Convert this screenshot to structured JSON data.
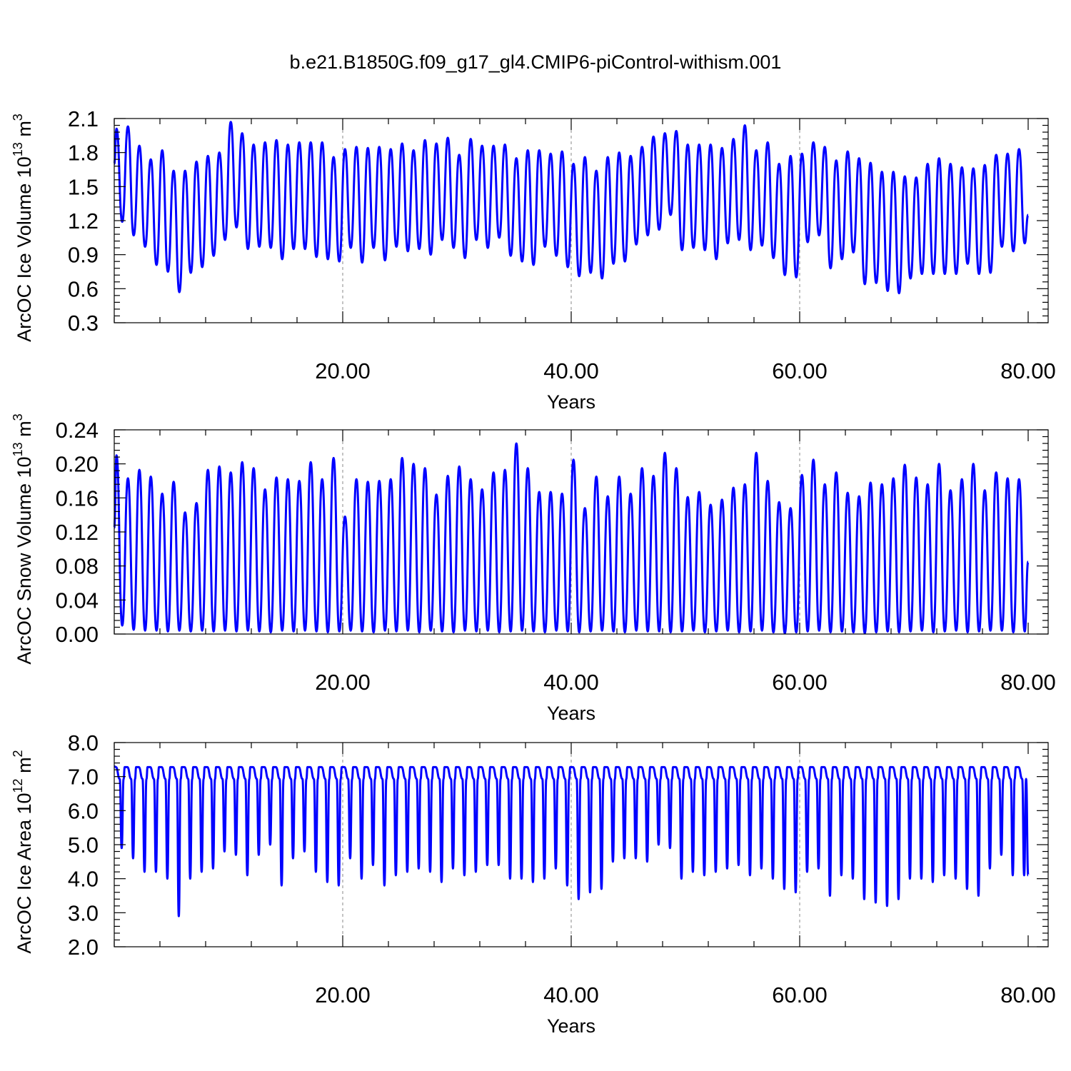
{
  "title": "b.e21.B1850G.f09_g17_gl4.CMIP6-piControl-withism.001",
  "colors": {
    "series": "#0000ff",
    "axes": "#000000",
    "grid": "#888888"
  },
  "chart_data": [
    {
      "type": "line",
      "ylabel_main": "ArcOC Ice Volume 10",
      "ylabel_exp": "13",
      "ylabel_unit": "m",
      "ylabel_unit_exp": "3",
      "xlabel": "Years",
      "xlim": [
        0,
        80
      ],
      "ylim": [
        0.3,
        2.1
      ],
      "yticks": [
        0.3,
        0.6,
        0.9,
        1.2,
        1.5,
        1.8,
        2.1
      ],
      "ytick_labels": [
        "0.3",
        "0.6",
        "0.9",
        "1.2",
        "1.5",
        "1.8",
        "2.1"
      ],
      "xticks": [
        20,
        40,
        60,
        80
      ],
      "xtick_labels": [
        "20.00",
        "40.00",
        "60.00",
        "80.00"
      ],
      "grid": "vertical dashed at major x ticks",
      "series": [
        {
          "start": 1.7,
          "end": 1.25,
          "peaks": [
            2.01,
            2.03,
            1.86,
            1.74,
            1.82,
            1.64,
            1.64,
            1.72,
            1.77,
            1.8,
            2.07,
            1.97,
            1.87,
            1.89,
            1.91,
            1.87,
            1.89,
            1.89,
            1.89,
            1.76,
            1.83,
            1.85,
            1.84,
            1.85,
            1.83,
            1.88,
            1.82,
            1.91,
            1.88,
            1.93,
            1.78,
            1.92,
            1.86,
            1.86,
            1.87,
            1.75,
            1.82,
            1.82,
            1.79,
            1.81,
            1.7,
            1.76,
            1.64,
            1.76,
            1.8,
            1.77,
            1.85,
            1.94,
            1.97,
            1.99,
            1.87,
            1.87,
            1.87,
            1.84,
            1.92,
            2.04,
            1.82,
            1.89,
            1.7,
            1.77,
            1.79,
            1.89,
            1.85,
            1.73,
            1.81,
            1.75,
            1.71,
            1.63,
            1.63,
            1.59,
            1.58,
            1.7,
            1.75,
            1.7,
            1.67,
            1.66,
            1.69,
            1.78,
            1.79,
            1.83
          ],
          "troughs": [
            1.19,
            1.07,
            0.97,
            0.81,
            0.75,
            0.57,
            0.74,
            0.79,
            0.89,
            1.03,
            1.14,
            0.95,
            0.97,
            0.96,
            0.86,
            0.95,
            0.95,
            0.88,
            0.86,
            0.84,
            0.96,
            0.83,
            0.96,
            0.85,
            0.97,
            0.93,
            0.95,
            0.9,
            1.03,
            0.96,
            0.87,
            1.03,
            0.96,
            1.05,
            0.89,
            0.84,
            0.81,
            0.97,
            0.89,
            0.79,
            0.71,
            0.74,
            0.69,
            0.82,
            0.84,
            0.99,
            1.07,
            1.12,
            1.25,
            0.94,
            0.96,
            0.94,
            0.86,
            1.0,
            1.03,
            0.94,
            0.98,
            0.87,
            0.72,
            0.7,
            1.01,
            1.07,
            0.78,
            0.86,
            0.92,
            0.64,
            0.65,
            0.58,
            0.56,
            0.69,
            0.73,
            0.73,
            0.73,
            0.73,
            0.82,
            0.73,
            0.74,
            0.97,
            0.93,
            1.0
          ]
        }
      ]
    },
    {
      "type": "line",
      "ylabel_main": "ArcOC Snow Volume 10",
      "ylabel_exp": "13",
      "ylabel_unit": "m",
      "ylabel_unit_exp": "3",
      "xlabel": "Years",
      "xlim": [
        0,
        80
      ],
      "ylim": [
        0.0,
        0.24
      ],
      "yticks": [
        0.0,
        0.04,
        0.08,
        0.12,
        0.16,
        0.2,
        0.24
      ],
      "ytick_labels": [
        "0.00",
        "0.04",
        "0.08",
        "0.12",
        "0.16",
        "0.20",
        "0.24"
      ],
      "xticks": [
        20,
        40,
        60,
        80
      ],
      "xtick_labels": [
        "20.00",
        "40.00",
        "60.00",
        "80.00"
      ],
      "grid": "vertical dashed at major x ticks",
      "series": [
        {
          "start": 0.125,
          "end": 0.085,
          "peaks": [
            0.21,
            0.183,
            0.193,
            0.185,
            0.165,
            0.179,
            0.143,
            0.154,
            0.193,
            0.197,
            0.19,
            0.202,
            0.195,
            0.17,
            0.184,
            0.182,
            0.18,
            0.202,
            0.182,
            0.207,
            0.138,
            0.182,
            0.179,
            0.18,
            0.182,
            0.207,
            0.2,
            0.195,
            0.164,
            0.186,
            0.197,
            0.182,
            0.17,
            0.19,
            0.193,
            0.224,
            0.195,
            0.167,
            0.167,
            0.165,
            0.205,
            0.148,
            0.185,
            0.162,
            0.185,
            0.165,
            0.195,
            0.186,
            0.213,
            0.195,
            0.161,
            0.167,
            0.152,
            0.158,
            0.172,
            0.176,
            0.213,
            0.18,
            0.155,
            0.148,
            0.187,
            0.205,
            0.176,
            0.19,
            0.166,
            0.162,
            0.178,
            0.176,
            0.183,
            0.199,
            0.184,
            0.176,
            0.2,
            0.169,
            0.182,
            0.2,
            0.169,
            0.19,
            0.183,
            0.182
          ],
          "troughs": [
            0.01,
            0.005,
            0.004,
            0.004,
            0.003,
            0.004,
            0.003,
            0.004,
            0.003,
            0.004,
            0.003,
            0.004,
            0.003,
            0.002,
            0.004,
            0.003,
            0.004,
            0.003,
            0.002,
            0.003,
            0.004,
            0.003,
            0.002,
            0.004,
            0.003,
            0.004,
            0.002,
            0.004,
            0.003,
            0.002,
            0.004,
            0.003,
            0.004,
            0.002,
            0.003,
            0.004,
            0.003,
            0.002,
            0.004,
            0.003,
            0.002,
            0.003,
            0.004,
            0.003,
            0.002,
            0.004,
            0.003,
            0.003,
            0.002,
            0.003,
            0.004,
            0.002,
            0.003,
            0.004,
            0.002,
            0.003,
            0.004,
            0.002,
            0.001,
            0.002,
            0.003,
            0.004,
            0.002,
            0.003,
            0.002,
            0.001,
            0.002,
            0.003,
            0.002,
            0.003,
            0.004,
            0.002,
            0.003,
            0.004,
            0.002,
            0.003,
            0.004,
            0.004,
            0.002,
            0.003
          ]
        }
      ]
    },
    {
      "type": "line",
      "ylabel_main": "ArcOC Ice Area 10",
      "ylabel_exp": "12",
      "ylabel_unit": "m",
      "ylabel_unit_exp": "2",
      "xlabel": "Years",
      "xlim": [
        0,
        80
      ],
      "ylim": [
        2.0,
        8.0
      ],
      "yticks": [
        2.0,
        3.0,
        4.0,
        5.0,
        6.0,
        7.0,
        8.0
      ],
      "ytick_labels": [
        "2.0",
        "3.0",
        "4.0",
        "5.0",
        "6.0",
        "7.0",
        "8.0"
      ],
      "xticks": [
        20,
        40,
        60,
        80
      ],
      "xtick_labels": [
        "20.00",
        "40.00",
        "60.00",
        "80.00"
      ],
      "grid": "vertical dashed at major x ticks",
      "series": [
        {
          "start": 7.3,
          "end": 4.1,
          "peak_value": 7.28,
          "troughs": [
            4.9,
            4.6,
            4.2,
            4.2,
            4.0,
            2.9,
            4.0,
            4.2,
            4.3,
            4.8,
            4.7,
            4.1,
            4.7,
            5.0,
            3.8,
            4.6,
            4.8,
            4.2,
            3.9,
            3.8,
            4.6,
            4.0,
            4.4,
            3.8,
            4.1,
            4.2,
            4.3,
            4.2,
            3.9,
            4.3,
            4.1,
            4.2,
            4.4,
            4.4,
            4.0,
            4.0,
            3.9,
            4.0,
            4.3,
            3.8,
            3.4,
            3.6,
            3.7,
            4.5,
            4.6,
            4.6,
            4.5,
            5.0,
            4.9,
            4.0,
            4.2,
            4.1,
            4.2,
            4.3,
            4.4,
            4.1,
            4.3,
            4.0,
            3.7,
            3.6,
            4.2,
            4.3,
            3.5,
            4.1,
            4.0,
            3.4,
            3.3,
            3.2,
            3.4,
            4.0,
            4.0,
            3.9,
            4.1,
            4.0,
            3.7,
            3.5,
            4.3,
            4.7,
            4.1,
            4.1
          ]
        }
      ]
    }
  ]
}
